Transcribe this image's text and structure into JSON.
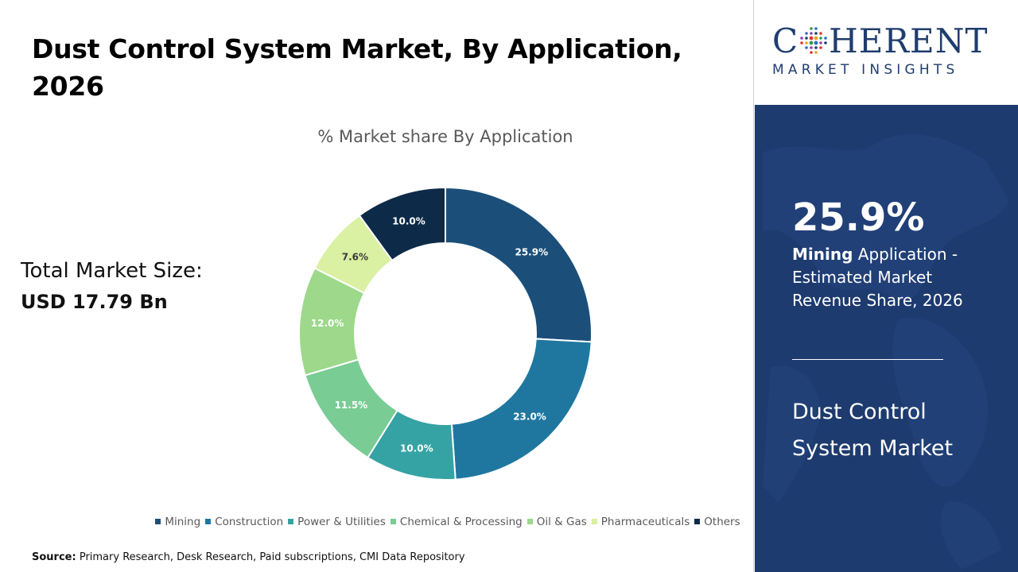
{
  "header": {
    "title_line1": "Dust Control System Market, By Application,",
    "title_line2": "2026"
  },
  "total": {
    "label": "Total Market Size:",
    "value": "USD 17.79 Bn"
  },
  "chart_data": {
    "type": "donut",
    "title": "% Market share By Application",
    "categories": [
      "Mining",
      "Construction",
      "Power & Utilities",
      "Chemical & Processing",
      "Oil & Gas",
      "Pharmaceuticals",
      "Others"
    ],
    "values": [
      25.9,
      23.0,
      10.0,
      11.5,
      12.0,
      7.6,
      10.0
    ],
    "labels": [
      "25.9%",
      "23.0%",
      "10.0%",
      "11.5%",
      "12.0%",
      "7.6%",
      "10.0%"
    ],
    "colors": [
      "#1b4f7a",
      "#1f77a0",
      "#35a3a4",
      "#78cc94",
      "#9dd88b",
      "#daf0a2",
      "#0d2b48"
    ],
    "label_colors": [
      "#ffffff",
      "#ffffff",
      "#ffffff",
      "#ffffff",
      "#ffffff",
      "#3b3b3b",
      "#ffffff"
    ],
    "legend_position": "bottom"
  },
  "source": {
    "label": "Source:",
    "text": "Primary Research, Desk Research, Paid subscriptions, CMI Data Repository"
  },
  "brand": {
    "name_pre": "C",
    "name_post": "HERENT",
    "tagline": "MARKET INSIGHTS",
    "color": "#1f3d6e"
  },
  "highlight": {
    "percent": "25.9%",
    "segment": "Mining",
    "description": " Application - Estimated Market Revenue Share, 2026",
    "market_name": "Dust Control System Market",
    "panel_color": "#1e3b6f"
  }
}
